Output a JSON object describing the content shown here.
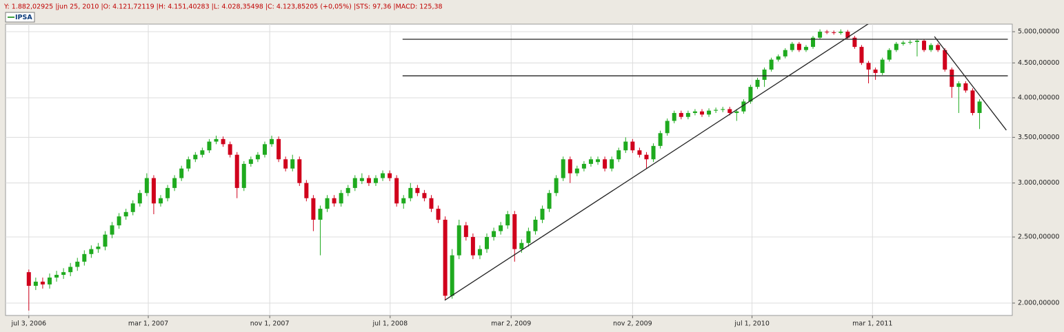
{
  "chart_data": {
    "type": "candlestick",
    "header_info": "Y: 1.882,02925 |jun 25, 2010 |O: 4.121,72119 |H: 4.151,40283 |L: 4.028,35498 |C: 4.123,85205 (+0,05%) |STS: 97,36 |MACD: 125,38",
    "log_scale": true,
    "grid": true,
    "legend": "top-left",
    "up_color": "#1faa1f",
    "down_color": "#d0001c",
    "xlim": [
      "2006-05-17",
      "2011-12-08"
    ],
    "ylim": [
      1918,
      5130
    ],
    "xticks": [
      {
        "value": "2006-07-03",
        "label": "jul 3, 2006"
      },
      {
        "value": "2007-03-01",
        "label": "mar 1, 2007"
      },
      {
        "value": "2007-11-01",
        "label": "nov 1, 2007"
      },
      {
        "value": "2008-07-01",
        "label": "jul 1, 2008"
      },
      {
        "value": "2009-03-02",
        "label": "mar 2, 2009"
      },
      {
        "value": "2009-11-02",
        "label": "nov 2, 2009"
      },
      {
        "value": "2010-07-01",
        "label": "jul 1, 2010"
      },
      {
        "value": "2011-03-01",
        "label": "mar 1, 2011"
      }
    ],
    "yticks": [
      {
        "value": 2000,
        "label": "2.000,00000"
      },
      {
        "value": 2500,
        "label": "2.500,00000"
      },
      {
        "value": 3000,
        "label": "3.000,00000"
      },
      {
        "value": 3500,
        "label": "3.500,00000"
      },
      {
        "value": 4000,
        "label": "4.000,00000"
      },
      {
        "value": 4500,
        "label": "4.500,00000"
      },
      {
        "value": 5000,
        "label": "5.000,00000"
      }
    ],
    "x": [
      "2006-07-03",
      "2006-07-17",
      "2006-07-31",
      "2006-08-14",
      "2006-08-28",
      "2006-09-11",
      "2006-09-25",
      "2006-10-09",
      "2006-10-23",
      "2006-11-06",
      "2006-11-20",
      "2006-12-04",
      "2006-12-18",
      "2007-01-01",
      "2007-01-15",
      "2007-01-29",
      "2007-02-12",
      "2007-02-26",
      "2007-03-12",
      "2007-03-26",
      "2007-04-09",
      "2007-04-23",
      "2007-05-07",
      "2007-05-21",
      "2007-06-04",
      "2007-06-18",
      "2007-07-02",
      "2007-07-16",
      "2007-07-30",
      "2007-08-13",
      "2007-08-27",
      "2007-09-10",
      "2007-09-24",
      "2007-10-08",
      "2007-10-22",
      "2007-11-05",
      "2007-11-19",
      "2007-12-03",
      "2007-12-17",
      "2007-12-31",
      "2008-01-14",
      "2008-01-28",
      "2008-02-11",
      "2008-02-25",
      "2008-03-10",
      "2008-03-24",
      "2008-04-07",
      "2008-04-21",
      "2008-05-05",
      "2008-05-19",
      "2008-06-02",
      "2008-06-16",
      "2008-06-30",
      "2008-07-14",
      "2008-07-28",
      "2008-08-11",
      "2008-08-25",
      "2008-09-08",
      "2008-09-22",
      "2008-10-06",
      "2008-10-20",
      "2008-11-03",
      "2008-11-17",
      "2008-12-01",
      "2008-12-15",
      "2008-12-29",
      "2009-01-12",
      "2009-01-26",
      "2009-02-09",
      "2009-02-23",
      "2009-03-09",
      "2009-03-23",
      "2009-04-06",
      "2009-04-20",
      "2009-05-04",
      "2009-05-18",
      "2009-06-01",
      "2009-06-15",
      "2009-06-29",
      "2009-07-13",
      "2009-07-27",
      "2009-08-10",
      "2009-08-24",
      "2009-09-07",
      "2009-09-21",
      "2009-10-05",
      "2009-10-19",
      "2009-11-02",
      "2009-11-16",
      "2009-11-30",
      "2009-12-14",
      "2009-12-28",
      "2010-01-11",
      "2010-01-25",
      "2010-02-08",
      "2010-02-22",
      "2010-03-08",
      "2010-03-22",
      "2010-04-05",
      "2010-04-19",
      "2010-05-03",
      "2010-05-17",
      "2010-05-31",
      "2010-06-14",
      "2010-06-28",
      "2010-07-12",
      "2010-07-26",
      "2010-08-09",
      "2010-08-23",
      "2010-09-06",
      "2010-09-20",
      "2010-10-04",
      "2010-10-18",
      "2010-11-01",
      "2010-11-15",
      "2010-11-29",
      "2010-12-13",
      "2010-12-27",
      "2011-01-10",
      "2011-01-24",
      "2011-02-07",
      "2011-02-21",
      "2011-03-07",
      "2011-03-21",
      "2011-04-04",
      "2011-04-18",
      "2011-05-02",
      "2011-05-16",
      "2011-05-30",
      "2011-06-13",
      "2011-06-27",
      "2011-07-11",
      "2011-07-25",
      "2011-08-08",
      "2011-08-22",
      "2011-09-05",
      "2011-09-19",
      "2011-10-03"
    ],
    "series": [
      {
        "name": "IPSA",
        "color": "#008000",
        "open": [
          2220,
          2120,
          2150,
          2130,
          2180,
          2200,
          2220,
          2260,
          2300,
          2360,
          2400,
          2420,
          2520,
          2600,
          2680,
          2720,
          2800,
          2900,
          3050,
          2800,
          2850,
          2950,
          3050,
          3150,
          3250,
          3300,
          3350,
          3450,
          3480,
          3420,
          3300,
          2950,
          3200,
          3250,
          3300,
          3420,
          3480,
          3250,
          3150,
          3250,
          3000,
          2850,
          2650,
          2750,
          2850,
          2800,
          2900,
          2950,
          3020,
          3050,
          3000,
          3050,
          3100,
          3050,
          2800,
          2850,
          2950,
          2900,
          2850,
          2750,
          2650,
          2050,
          2350,
          2600,
          2500,
          2350,
          2400,
          2500,
          2550,
          2600,
          2700,
          2400,
          2450,
          2550,
          2650,
          2750,
          2900,
          3050,
          3250,
          3100,
          3150,
          3200,
          3220,
          3250,
          3150,
          3250,
          3350,
          3450,
          3350,
          3300,
          3250,
          3400,
          3550,
          3700,
          3800,
          3750,
          3800,
          3820,
          3780,
          3830,
          3840,
          3850,
          3800,
          3820,
          3950,
          4150,
          4250,
          4400,
          4550,
          4600,
          4700,
          4800,
          4700,
          4750,
          4900,
          5000,
          4990,
          4980,
          5000,
          4900,
          4750,
          4500,
          4400,
          4350,
          4550,
          4700,
          4800,
          4820,
          4830,
          4850,
          4700,
          4780,
          4700,
          4400,
          4150,
          4200,
          4100,
          3800
        ],
        "high": [
          2240,
          2180,
          2180,
          2210,
          2230,
          2250,
          2290,
          2330,
          2390,
          2430,
          2450,
          2550,
          2630,
          2710,
          2750,
          2830,
          2930,
          3100,
          3080,
          2880,
          2980,
          3080,
          3180,
          3280,
          3330,
          3380,
          3480,
          3520,
          3510,
          3450,
          3330,
          3230,
          3280,
          3330,
          3450,
          3520,
          3510,
          3280,
          3300,
          3280,
          3030,
          2880,
          2780,
          2880,
          2880,
          2930,
          2980,
          3080,
          3100,
          3080,
          3080,
          3130,
          3130,
          3080,
          2880,
          3000,
          2980,
          2930,
          2880,
          2780,
          2680,
          2400,
          2650,
          2630,
          2530,
          2430,
          2530,
          2580,
          2630,
          2730,
          2730,
          2480,
          2580,
          2680,
          2780,
          2930,
          3080,
          3280,
          3280,
          3180,
          3230,
          3280,
          3280,
          3280,
          3280,
          3380,
          3500,
          3480,
          3380,
          3330,
          3430,
          3580,
          3730,
          3830,
          3830,
          3830,
          3850,
          3850,
          3860,
          3870,
          3880,
          3880,
          3850,
          3980,
          4180,
          4280,
          4430,
          4580,
          4630,
          4730,
          4830,
          4830,
          4780,
          4930,
          5040,
          5030,
          5020,
          5040,
          5030,
          4930,
          4780,
          4530,
          4430,
          4580,
          4730,
          4830,
          4850,
          4860,
          4880,
          4880,
          4810,
          4810,
          4730,
          4430,
          4230,
          4230,
          4130,
          3980
        ],
        "low": [
          1950,
          2090,
          2100,
          2100,
          2150,
          2170,
          2190,
          2230,
          2270,
          2330,
          2370,
          2390,
          2490,
          2570,
          2650,
          2690,
          2770,
          2870,
          2700,
          2770,
          2820,
          2920,
          3020,
          3120,
          3220,
          3270,
          3320,
          3420,
          3390,
          3270,
          2850,
          2920,
          3170,
          3220,
          3270,
          3390,
          3220,
          3120,
          3120,
          2970,
          2820,
          2550,
          2350,
          2720,
          2770,
          2770,
          2870,
          2920,
          2990,
          2970,
          2970,
          3020,
          3020,
          2770,
          2750,
          2820,
          2870,
          2820,
          2720,
          2620,
          2020,
          2030,
          2320,
          2470,
          2320,
          2320,
          2370,
          2470,
          2520,
          2570,
          2300,
          2370,
          2420,
          2520,
          2620,
          2720,
          2870,
          3020,
          3000,
          3070,
          3120,
          3170,
          3190,
          3120,
          3120,
          3220,
          3320,
          3320,
          3270,
          3150,
          3220,
          3370,
          3520,
          3670,
          3720,
          3720,
          3770,
          3750,
          3750,
          3800,
          3810,
          3770,
          3700,
          3790,
          3920,
          4120,
          4150,
          4370,
          4520,
          4570,
          4670,
          4670,
          4670,
          4720,
          4870,
          4960,
          4950,
          4950,
          4870,
          4720,
          4470,
          4200,
          4250,
          4320,
          4520,
          4670,
          4770,
          4790,
          4600,
          4670,
          4670,
          4670,
          4370,
          4000,
          3800,
          4070,
          3770,
          3600
        ],
        "close": [
          2120,
          2150,
          2130,
          2180,
          2200,
          2220,
          2260,
          2300,
          2360,
          2400,
          2420,
          2520,
          2600,
          2680,
          2720,
          2800,
          2900,
          3050,
          2800,
          2850,
          2950,
          3050,
          3150,
          3250,
          3300,
          3350,
          3450,
          3480,
          3420,
          3300,
          2950,
          3200,
          3250,
          3300,
          3420,
          3480,
          3250,
          3150,
          3250,
          3000,
          2850,
          2650,
          2750,
          2850,
          2800,
          2900,
          2950,
          3050,
          3050,
          3000,
          3050,
          3100,
          3050,
          2800,
          2850,
          2950,
          2900,
          2850,
          2750,
          2650,
          2050,
          2350,
          2600,
          2500,
          2350,
          2400,
          2500,
          2550,
          2600,
          2700,
          2400,
          2450,
          2550,
          2650,
          2750,
          2900,
          3050,
          3250,
          3100,
          3150,
          3200,
          3250,
          3250,
          3150,
          3250,
          3350,
          3450,
          3350,
          3300,
          3250,
          3400,
          3550,
          3700,
          3800,
          3750,
          3800,
          3820,
          3780,
          3830,
          3840,
          3850,
          3800,
          3820,
          3950,
          4150,
          4250,
          4400,
          4550,
          4600,
          4700,
          4800,
          4700,
          4750,
          4900,
          5000,
          4990,
          4980,
          5000,
          4900,
          4750,
          4500,
          4400,
          4350,
          4550,
          4700,
          4800,
          4820,
          4830,
          4850,
          4700,
          4780,
          4700,
          4400,
          4150,
          4200,
          4100,
          3800,
          3950
        ]
      }
    ],
    "trendlines": [
      {
        "color": "#222222",
        "x": [
          "2008-07-26",
          "2011-11-29"
        ],
        "y": [
          4874,
          4874
        ]
      },
      {
        "color": "#222222",
        "x": [
          "2008-07-26",
          "2011-11-29"
        ],
        "y": [
          4308,
          4308
        ]
      },
      {
        "color": "#222222",
        "x": [
          "2008-10-19",
          "2011-04-14"
        ],
        "y": [
          2019,
          5437
        ]
      },
      {
        "color": "#222222",
        "x": [
          "2011-07-04",
          "2011-11-26"
        ],
        "y": [
          4919,
          3586
        ]
      }
    ]
  }
}
